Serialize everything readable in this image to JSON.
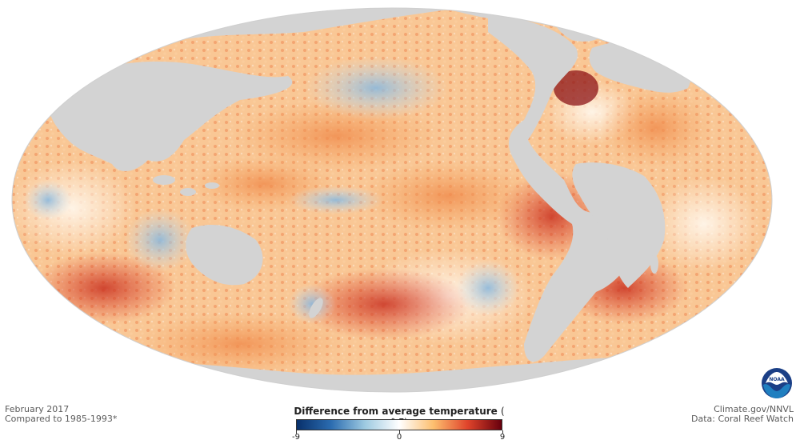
{
  "map": {
    "projection": "Pacific-centered global ellipse (Mollweide-style)",
    "variable": "sea surface temperature anomaly",
    "land_color": "#d3d3d3",
    "background_color": "#ffffff"
  },
  "caption": {
    "date_line": "February 2017",
    "baseline_line": "Compared to 1985-1993*"
  },
  "credits": {
    "source_line": "Climate.gov/NNVL",
    "data_line": "Data: Coral Reef Watch"
  },
  "legend": {
    "title": "Difference from average temperature",
    "unit": "( ° F)",
    "min": -9,
    "max": 9,
    "ticks": [
      {
        "value": -9,
        "label": "-9"
      },
      {
        "value": 0,
        "label": "0"
      },
      {
        "value": 9,
        "label": "9"
      }
    ],
    "color_stops": [
      {
        "value": -9,
        "color": "#08306b"
      },
      {
        "value": -6,
        "color": "#2b6cb0"
      },
      {
        "value": -3,
        "color": "#9ecae1"
      },
      {
        "value": 0,
        "color": "#ffffff"
      },
      {
        "value": 3,
        "color": "#fdbf6f"
      },
      {
        "value": 6,
        "color": "#e0442b"
      },
      {
        "value": 9,
        "color": "#67000d"
      }
    ]
  },
  "logo": {
    "name": "noaa-logo",
    "text": "NOAA",
    "colors": [
      "#1b3f86",
      "#1f7fc0",
      "#ffffff"
    ]
  }
}
